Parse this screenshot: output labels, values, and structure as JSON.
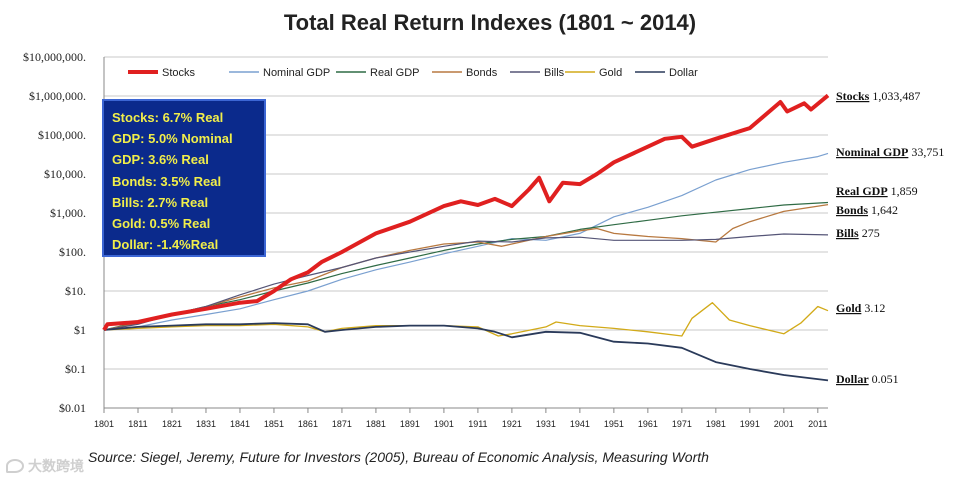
{
  "chart_data": {
    "type": "line",
    "title": "Total Real Return Indexes (1801 ~ 2014)",
    "y_scale": "log",
    "ylim": [
      0.01,
      10000000
    ],
    "y_tick_labels": [
      "$10,000,000.",
      "$1,000,000.",
      "$100,000.",
      "$10,000.",
      "$1,000.",
      "$100.",
      "$10.",
      "$1",
      "$0.1",
      "$0.01"
    ],
    "x_tick_labels": [
      "1801",
      "1811",
      "1821",
      "1831",
      "1841",
      "1851",
      "1861",
      "1871",
      "1881",
      "1891",
      "1901",
      "1911",
      "1921",
      "1931",
      "1941",
      "1951",
      "1961",
      "1971",
      "1981",
      "1991",
      "2001",
      "2011"
    ],
    "xlim": [
      1801,
      2014
    ],
    "legend": [
      "Stocks",
      "Nominal GDP",
      "Real GDP",
      "Bonds",
      "Bills",
      "Gold",
      "Dollar"
    ],
    "legend_position": "top",
    "series": [
      {
        "name": "Stocks",
        "color": "#e02020",
        "width": 4,
        "points": [
          [
            1801,
            1
          ],
          [
            1802,
            1.4
          ],
          [
            1811,
            1.6
          ],
          [
            1821,
            2.5
          ],
          [
            1831,
            3.5
          ],
          [
            1841,
            5
          ],
          [
            1846,
            5.5
          ],
          [
            1851,
            10
          ],
          [
            1856,
            20
          ],
          [
            1861,
            30
          ],
          [
            1865,
            55
          ],
          [
            1871,
            100
          ],
          [
            1881,
            300
          ],
          [
            1891,
            600
          ],
          [
            1901,
            1500
          ],
          [
            1906,
            2000
          ],
          [
            1911,
            1600
          ],
          [
            1916,
            2300
          ],
          [
            1921,
            1500
          ],
          [
            1926,
            4000
          ],
          [
            1929,
            8000
          ],
          [
            1932,
            2000
          ],
          [
            1936,
            6000
          ],
          [
            1941,
            5500
          ],
          [
            1946,
            10000
          ],
          [
            1951,
            20000
          ],
          [
            1961,
            50000
          ],
          [
            1966,
            80000
          ],
          [
            1971,
            90000
          ],
          [
            1974,
            50000
          ],
          [
            1981,
            80000
          ],
          [
            1991,
            150000
          ],
          [
            2000,
            700000
          ],
          [
            2002,
            400000
          ],
          [
            2007,
            650000
          ],
          [
            2009,
            450000
          ],
          [
            2014,
            1033487
          ]
        ]
      },
      {
        "name": "Nominal GDP",
        "color": "#7aa0d0",
        "width": 1.2,
        "points": [
          [
            1801,
            1
          ],
          [
            1811,
            1.2
          ],
          [
            1821,
            1.8
          ],
          [
            1831,
            2.5
          ],
          [
            1841,
            3.5
          ],
          [
            1851,
            6
          ],
          [
            1861,
            10
          ],
          [
            1871,
            20
          ],
          [
            1881,
            35
          ],
          [
            1891,
            55
          ],
          [
            1901,
            90
          ],
          [
            1911,
            140
          ],
          [
            1921,
            220
          ],
          [
            1931,
            200
          ],
          [
            1941,
            300
          ],
          [
            1951,
            800
          ],
          [
            1961,
            1400
          ],
          [
            1971,
            2800
          ],
          [
            1981,
            7000
          ],
          [
            1991,
            13000
          ],
          [
            2001,
            20000
          ],
          [
            2011,
            28000
          ],
          [
            2014,
            33751
          ]
        ]
      },
      {
        "name": "Real GDP",
        "color": "#2f6b45",
        "width": 1.2,
        "points": [
          [
            1801,
            1
          ],
          [
            1811,
            1.6
          ],
          [
            1821,
            2.5
          ],
          [
            1831,
            4
          ],
          [
            1841,
            6
          ],
          [
            1851,
            10
          ],
          [
            1861,
            16
          ],
          [
            1871,
            28
          ],
          [
            1881,
            45
          ],
          [
            1891,
            70
          ],
          [
            1901,
            110
          ],
          [
            1911,
            160
          ],
          [
            1921,
            210
          ],
          [
            1931,
            250
          ],
          [
            1941,
            380
          ],
          [
            1951,
            500
          ],
          [
            1961,
            650
          ],
          [
            1971,
            850
          ],
          [
            1981,
            1050
          ],
          [
            1991,
            1300
          ],
          [
            2001,
            1600
          ],
          [
            2014,
            1859
          ]
        ]
      },
      {
        "name": "Bonds",
        "color": "#b87940",
        "width": 1.3,
        "points": [
          [
            1801,
            1
          ],
          [
            1811,
            1.5
          ],
          [
            1821,
            2.5
          ],
          [
            1831,
            4
          ],
          [
            1841,
            7
          ],
          [
            1851,
            12
          ],
          [
            1861,
            18
          ],
          [
            1871,
            40
          ],
          [
            1881,
            70
          ],
          [
            1891,
            110
          ],
          [
            1901,
            160
          ],
          [
            1911,
            180
          ],
          [
            1918,
            140
          ],
          [
            1921,
            160
          ],
          [
            1931,
            250
          ],
          [
            1941,
            350
          ],
          [
            1946,
            400
          ],
          [
            1951,
            300
          ],
          [
            1961,
            250
          ],
          [
            1971,
            220
          ],
          [
            1981,
            180
          ],
          [
            1986,
            400
          ],
          [
            1991,
            600
          ],
          [
            2001,
            1100
          ],
          [
            2014,
            1642
          ]
        ]
      },
      {
        "name": "Bills",
        "color": "#555577",
        "width": 1.2,
        "points": [
          [
            1801,
            1
          ],
          [
            1811,
            1.4
          ],
          [
            1821,
            2.5
          ],
          [
            1831,
            4
          ],
          [
            1841,
            8
          ],
          [
            1851,
            15
          ],
          [
            1861,
            25
          ],
          [
            1871,
            40
          ],
          [
            1881,
            70
          ],
          [
            1891,
            100
          ],
          [
            1901,
            140
          ],
          [
            1911,
            190
          ],
          [
            1921,
            180
          ],
          [
            1931,
            230
          ],
          [
            1941,
            240
          ],
          [
            1951,
            200
          ],
          [
            1961,
            200
          ],
          [
            1971,
            200
          ],
          [
            1981,
            210
          ],
          [
            1991,
            250
          ],
          [
            2001,
            290
          ],
          [
            2014,
            275
          ]
        ]
      },
      {
        "name": "Gold",
        "color": "#d2aa18",
        "width": 1.3,
        "points": [
          [
            1801,
            1
          ],
          [
            1811,
            1.1
          ],
          [
            1821,
            1.2
          ],
          [
            1831,
            1.3
          ],
          [
            1841,
            1.3
          ],
          [
            1851,
            1.4
          ],
          [
            1861,
            1.2
          ],
          [
            1866,
            0.9
          ],
          [
            1871,
            1.1
          ],
          [
            1881,
            1.3
          ],
          [
            1891,
            1.3
          ],
          [
            1901,
            1.3
          ],
          [
            1911,
            1.2
          ],
          [
            1917,
            0.7
          ],
          [
            1921,
            0.8
          ],
          [
            1931,
            1.2
          ],
          [
            1934,
            1.6
          ],
          [
            1941,
            1.3
          ],
          [
            1951,
            1.1
          ],
          [
            1961,
            0.9
          ],
          [
            1971,
            0.7
          ],
          [
            1974,
            2
          ],
          [
            1980,
            5
          ],
          [
            1985,
            1.8
          ],
          [
            1991,
            1.3
          ],
          [
            2001,
            0.8
          ],
          [
            2006,
            1.5
          ],
          [
            2011,
            4
          ],
          [
            2014,
            3.12
          ]
        ]
      },
      {
        "name": "Dollar",
        "color": "#2a3a5a",
        "width": 1.8,
        "points": [
          [
            1801,
            1
          ],
          [
            1811,
            1.2
          ],
          [
            1821,
            1.3
          ],
          [
            1831,
            1.4
          ],
          [
            1841,
            1.4
          ],
          [
            1851,
            1.5
          ],
          [
            1861,
            1.4
          ],
          [
            1866,
            0.9
          ],
          [
            1871,
            1.0
          ],
          [
            1881,
            1.2
          ],
          [
            1891,
            1.3
          ],
          [
            1901,
            1.3
          ],
          [
            1911,
            1.1
          ],
          [
            1916,
            0.9
          ],
          [
            1921,
            0.65
          ],
          [
            1931,
            0.9
          ],
          [
            1941,
            0.85
          ],
          [
            1946,
            0.65
          ],
          [
            1951,
            0.5
          ],
          [
            1961,
            0.45
          ],
          [
            1971,
            0.35
          ],
          [
            1981,
            0.15
          ],
          [
            1991,
            0.1
          ],
          [
            2001,
            0.07
          ],
          [
            2014,
            0.051
          ]
        ]
      }
    ],
    "end_labels": [
      {
        "name": "Stocks",
        "value": "1,033,487"
      },
      {
        "name": "Nominal GDP",
        "value": "33,751"
      },
      {
        "name": "Real GDP",
        "value": "1,859"
      },
      {
        "name": "Bonds",
        "value": "1,642"
      },
      {
        "name": "Bills",
        "value": "275"
      },
      {
        "name": "Gold",
        "value": "3.12"
      },
      {
        "name": "Dollar",
        "value": "0.051"
      }
    ],
    "annotation_box": [
      "Stocks: 6.7% Real",
      "GDP: 5.0% Nominal",
      "GDP: 3.6% Real",
      "Bonds: 3.5% Real",
      "Bills:    2.7% Real",
      "Gold:   0.5% Real",
      "Dollar: -1.4%Real"
    ],
    "annotation_colors": {
      "background": "#0b2a8c",
      "text": "#f1ee4a"
    }
  },
  "source": "Source: Siegel, Jeremy, Future for Investors (2005), Bureau of Economic Analysis, Measuring Worth",
  "watermark": "大数跨境"
}
